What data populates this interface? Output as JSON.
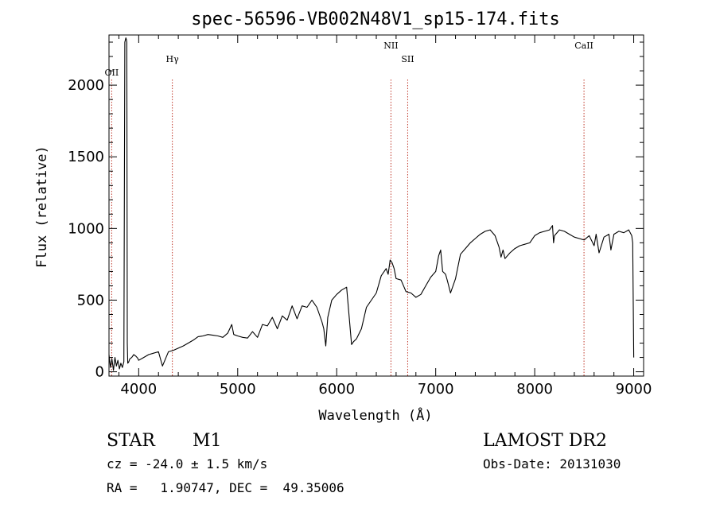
{
  "chart_data": {
    "type": "line",
    "title": "spec-56596-VB002N48V1_sp15-174.fits",
    "xlabel": "Wavelength (Å)",
    "ylabel": "Flux (relative)",
    "xlim": [
      3700,
      9100
    ],
    "ylim": [
      -30,
      2350
    ],
    "x_ticks": [
      4000,
      5000,
      6000,
      7000,
      8000,
      9000
    ],
    "y_ticks": [
      0,
      500,
      1000,
      1500,
      2000
    ],
    "grid": false,
    "series": [
      {
        "color": "#000000",
        "x": [
          3700,
          3715,
          3730,
          3745,
          3760,
          3775,
          3790,
          3805,
          3820,
          3835,
          3850,
          3860,
          3870,
          3875,
          3880,
          3885,
          3890,
          3900,
          3910,
          3930,
          3950,
          3970,
          3990,
          4000,
          4050,
          4100,
          4150,
          4200,
          4240,
          4300,
          4350,
          4400,
          4450,
          4500,
          4550,
          4600,
          4650,
          4700,
          4750,
          4800,
          4850,
          4900,
          4940,
          4960,
          5000,
          5050,
          5100,
          5150,
          5200,
          5250,
          5300,
          5350,
          5400,
          5450,
          5500,
          5550,
          5600,
          5650,
          5700,
          5750,
          5800,
          5850,
          5870,
          5890,
          5910,
          5950,
          6000,
          6050,
          6100,
          6150,
          6170,
          6200,
          6250,
          6300,
          6350,
          6400,
          6450,
          6500,
          6520,
          6540,
          6560,
          6580,
          6600,
          6650,
          6700,
          6750,
          6800,
          6850,
          6900,
          6950,
          7000,
          7030,
          7050,
          7070,
          7100,
          7120,
          7150,
          7200,
          7250,
          7300,
          7350,
          7400,
          7450,
          7500,
          7550,
          7600,
          7640,
          7660,
          7680,
          7700,
          7750,
          7800,
          7850,
          7900,
          7950,
          8000,
          8050,
          8100,
          8150,
          8180,
          8190,
          8200,
          8250,
          8300,
          8350,
          8400,
          8450,
          8500,
          8550,
          8600,
          8620,
          8650,
          8700,
          8750,
          8770,
          8800,
          8850,
          8900,
          8950,
          8980,
          8990,
          9000
        ],
        "y": [
          120,
          30,
          90,
          10,
          100,
          40,
          80,
          20,
          60,
          30,
          70,
          2300,
          2330,
          2320,
          2300,
          200,
          60,
          70,
          90,
          100,
          120,
          110,
          95,
          80,
          100,
          120,
          130,
          140,
          40,
          140,
          150,
          165,
          180,
          200,
          220,
          245,
          250,
          260,
          255,
          250,
          240,
          270,
          330,
          260,
          250,
          240,
          235,
          280,
          240,
          330,
          320,
          380,
          300,
          390,
          360,
          460,
          370,
          460,
          450,
          500,
          450,
          350,
          300,
          180,
          380,
          500,
          540,
          570,
          590,
          190,
          210,
          230,
          300,
          450,
          500,
          550,
          670,
          720,
          680,
          780,
          760,
          720,
          650,
          640,
          560,
          550,
          520,
          540,
          600,
          660,
          700,
          810,
          850,
          700,
          680,
          630,
          550,
          650,
          820,
          860,
          900,
          930,
          960,
          980,
          990,
          950,
          870,
          800,
          850,
          790,
          830,
          860,
          880,
          890,
          900,
          950,
          970,
          980,
          990,
          1020,
          900,
          950,
          990,
          980,
          960,
          940,
          930,
          920,
          950,
          880,
          960,
          830,
          940,
          960,
          850,
          960,
          980,
          970,
          990,
          950,
          900,
          100
        ]
      }
    ],
    "spectral_lines": [
      {
        "label": "OII",
        "x": 3727
      },
      {
        "label": "Hγ",
        "x": 4340
      },
      {
        "label": "NII",
        "x": 6548
      },
      {
        "label": "SII",
        "x": 6717
      },
      {
        "label": "CaII",
        "x": 8498
      }
    ],
    "line_marker_color": "#c0392b"
  },
  "footer": {
    "star_label": "STAR",
    "class_value": "M1",
    "survey": "LAMOST DR2",
    "cz_text": "cz = -24.0 ± 1.5 km/s",
    "obs_date": "Obs-Date: 20131030",
    "coords_text": "RA =   1.90747, DEC =  49.35006"
  }
}
